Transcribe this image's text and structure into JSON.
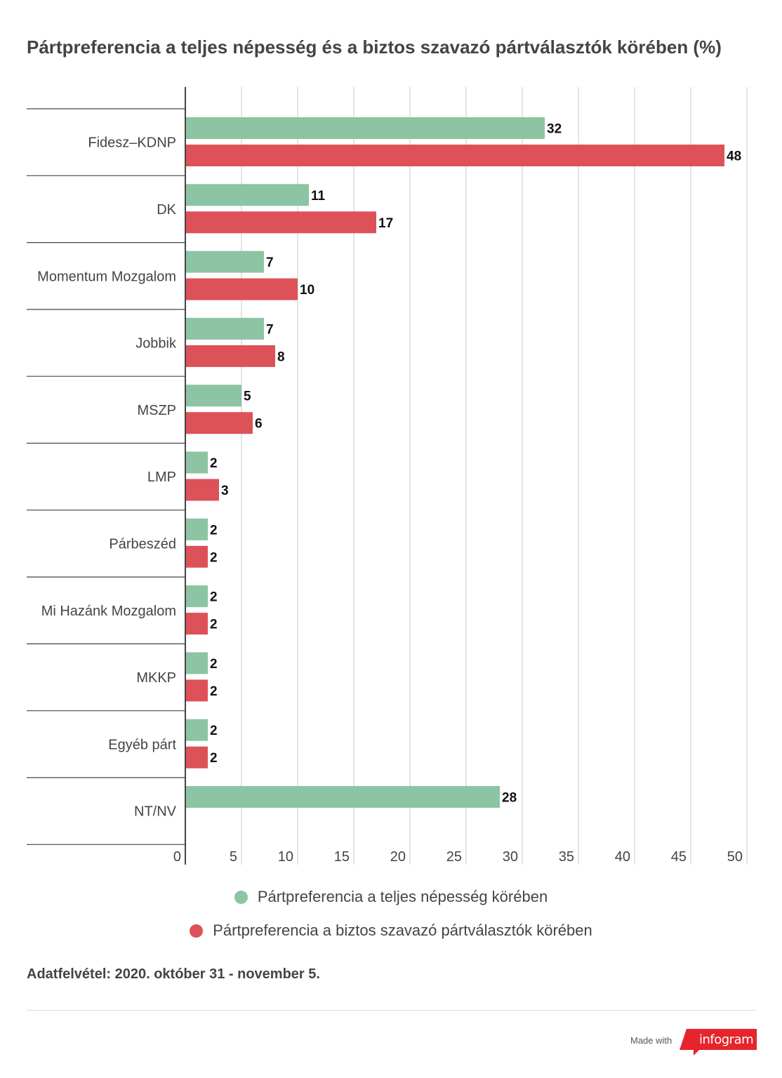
{
  "title": "Pártpreferencia a teljes népesség és a biztos szavazó pártválasztók körében (%)",
  "chart_data": {
    "type": "bar",
    "orientation": "horizontal",
    "categories": [
      "Fidesz–KDNP",
      "DK",
      "Momentum Mozgalom",
      "Jobbik",
      "MSZP",
      "LMP",
      "Párbeszéd",
      "Mi Hazánk Mozgalom",
      "MKKP",
      "Egyéb párt",
      "NT/NV"
    ],
    "series": [
      {
        "name": "Pártpreferencia a teljes népesség körében",
        "color": "#8cc4a4",
        "values": [
          32,
          11,
          7,
          7,
          5,
          2,
          2,
          2,
          2,
          2,
          28
        ]
      },
      {
        "name": "Pártpreferencia a biztos szavazó pártválasztók körében",
        "color": "#dd5158",
        "values": [
          48,
          17,
          10,
          8,
          6,
          3,
          2,
          2,
          2,
          2,
          null
        ]
      }
    ],
    "xlim": [
      0,
      50
    ],
    "xticks": [
      "0",
      "5",
      "10",
      "15",
      "20",
      "25",
      "30",
      "35",
      "40",
      "45",
      "50"
    ],
    "grid": true,
    "legend_position": "bottom"
  },
  "source_note": "Adatfelvétel: 2020. október 31 - november 5.",
  "footer": {
    "made_with": "Made with",
    "brand": "infogram",
    "brand_color": "#e5242b"
  }
}
